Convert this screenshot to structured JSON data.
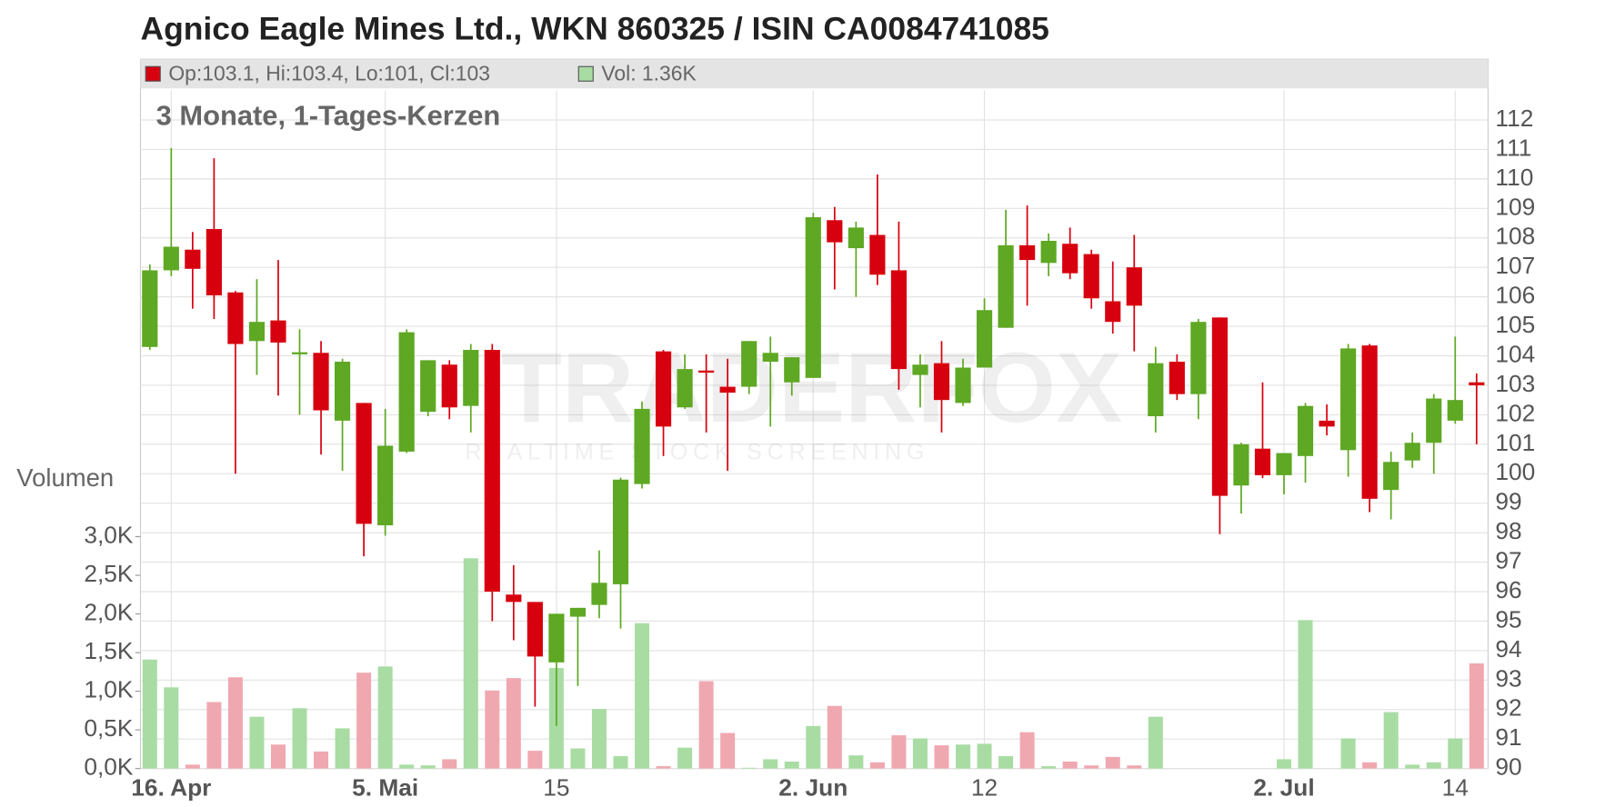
{
  "chart_data": {
    "type": "candlestick",
    "title": "Agnico Eagle Mines Ltd., WKN 860325 / ISIN CA0084741085",
    "subtitle": "3 Monate, 1-Tages-Kerzen",
    "legend_price": "Op:103.1, Hi:103.4, Lo:101, Cl:103",
    "legend_volume": "Vol: 1.36K",
    "volume_axis_label": "Volumen",
    "watermark": "TRADERFOX",
    "watermark_sub": "REALTIME STOCK SCREENING",
    "categories": [
      null,
      "16. Apr",
      null,
      null,
      null,
      null,
      null,
      null,
      null,
      null,
      null,
      "5. Mai",
      null,
      null,
      null,
      null,
      null,
      null,
      null,
      "15",
      null,
      null,
      null,
      null,
      null,
      null,
      null,
      null,
      null,
      null,
      null,
      "2. Jun",
      null,
      null,
      null,
      null,
      null,
      null,
      null,
      "12",
      null,
      null,
      null,
      null,
      null,
      null,
      null,
      null,
      null,
      null,
      null,
      null,
      null,
      "2. Jul",
      null,
      null,
      null,
      null,
      null,
      null,
      null,
      "14",
      null
    ],
    "open": [
      104.3,
      106.9,
      107.6,
      108.3,
      106.15,
      104.5,
      105.2,
      104.1,
      104.1,
      101.8,
      102.4,
      98.25,
      100.75,
      102.1,
      103.7,
      102.3,
      104.2,
      95.9,
      95.65,
      93.6,
      95.15,
      95.55,
      96.25,
      99.65,
      104.15,
      102.25,
      103.5,
      102.95,
      102.95,
      103.8,
      103.1,
      103.25,
      108.6,
      107.65,
      108.1,
      106.9,
      103.35,
      103.75,
      102.4,
      103.6,
      104.95,
      107.75,
      107.15,
      107.8,
      107.45,
      105.85,
      107.0,
      101.95,
      103.8,
      102.7,
      105.3,
      99.6,
      100.85,
      99.95,
      100.6,
      101.8,
      100.8,
      104.35,
      99.45,
      100.45,
      101.05,
      101.8,
      103.1
    ],
    "high": [
      107.1,
      111.05,
      108.2,
      110.7,
      106.2,
      106.6,
      107.25,
      104.9,
      104.5,
      103.9,
      102.4,
      102.2,
      104.9,
      103.85,
      103.85,
      104.4,
      104.4,
      96.9,
      95.65,
      95.25,
      95.45,
      97.4,
      99.87,
      102.45,
      104.2,
      104.05,
      104.05,
      103.9,
      104.5,
      104.65,
      103.95,
      108.85,
      109.05,
      108.55,
      110.15,
      108.55,
      104.05,
      104.5,
      103.9,
      105.95,
      108.95,
      109.1,
      108.15,
      108.35,
      107.6,
      107.2,
      108.1,
      104.3,
      104.05,
      105.25,
      105.3,
      101.05,
      103.1,
      100.7,
      102.4,
      102.35,
      104.4,
      104.4,
      100.75,
      101.4,
      102.7,
      104.65,
      103.4
    ],
    "low": [
      104.2,
      106.7,
      105.6,
      105.25,
      100,
      103.35,
      102.65,
      102,
      100.65,
      100.1,
      97.2,
      97.9,
      100.7,
      101.95,
      101.85,
      101.4,
      95.0,
      94.35,
      92.1,
      91.45,
      92.8,
      95.1,
      94.75,
      99.5,
      100.6,
      102.2,
      101.4,
      100.1,
      102.7,
      101.6,
      102.65,
      103.25,
      106.25,
      106.0,
      106.4,
      102.85,
      102.25,
      101.4,
      102.3,
      103.6,
      104.95,
      105.7,
      106.7,
      106.6,
      105.6,
      104.75,
      104.15,
      101.4,
      102.5,
      101.85,
      97.95,
      98.65,
      99.85,
      99.3,
      99.7,
      101.3,
      99.9,
      98.7,
      98.45,
      100.2,
      100.0,
      101.7,
      101
    ],
    "close": [
      106.9,
      107.7,
      106.95,
      106.05,
      104.4,
      105.15,
      104.45,
      104.12,
      102.15,
      103.8,
      98.3,
      100.95,
      104.8,
      103.85,
      102.25,
      104.2,
      96.0,
      95.65,
      93.8,
      95.25,
      95.45,
      96.3,
      99.8,
      102.2,
      101.6,
      103.55,
      103.45,
      102.75,
      104.5,
      104.1,
      103.95,
      108.7,
      107.85,
      108.35,
      106.75,
      103.55,
      103.7,
      102.5,
      103.6,
      105.55,
      107.75,
      107.25,
      107.9,
      106.8,
      105.95,
      105.15,
      105.7,
      103.75,
      102.7,
      105.15,
      99.25,
      101.0,
      99.95,
      100.7,
      102.3,
      101.6,
      104.25,
      99.15,
      100.4,
      101.05,
      102.55,
      102.5,
      103
    ],
    "volume": [
      1.41,
      1.05,
      0.05,
      0.86,
      1.18,
      0.67,
      0.31,
      0.78,
      0.22,
      0.52,
      1.24,
      1.32,
      0.05,
      0.04,
      0.12,
      2.72,
      1.01,
      1.17,
      0.23,
      1.3,
      0.26,
      0.77,
      0.16,
      1.88,
      0.03,
      0.27,
      1.13,
      0.46,
      0.01,
      0.12,
      0.09,
      0.55,
      0.81,
      0.17,
      0.08,
      0.43,
      0.39,
      0.3,
      0.31,
      0.32,
      0.16,
      0.47,
      0.03,
      0.09,
      0.04,
      0.15,
      0.04,
      0.67,
      0,
      0,
      0,
      0,
      0,
      0.12,
      1.92,
      0,
      0.39,
      0.08,
      0.73,
      0.05,
      0.08,
      0.39,
      1.36
    ],
    "ylim": [
      90,
      113
    ],
    "yticks": [
      90,
      91,
      92,
      93,
      94,
      95,
      96,
      97,
      98,
      99,
      100,
      101,
      102,
      103,
      104,
      105,
      106,
      107,
      108,
      109,
      110,
      111,
      112
    ],
    "y2lim": [
      0,
      3
    ],
    "y2ticks": [
      {
        "value": 0,
        "label": "0,0K"
      },
      {
        "value": 0.5,
        "label": "0,5K"
      },
      {
        "value": 1,
        "label": "1,0K"
      },
      {
        "value": 1.5,
        "label": "1,5K"
      },
      {
        "value": 2,
        "label": "2,0K"
      },
      {
        "value": 2.5,
        "label": "2,5K"
      },
      {
        "value": 3,
        "label": "3,0K"
      }
    ],
    "up_color": "#5ea823",
    "down_color": "#d7000f",
    "volume_up_color": "#a8dca3",
    "volume_down_color": "#f0a8b0",
    "grid": true
  }
}
